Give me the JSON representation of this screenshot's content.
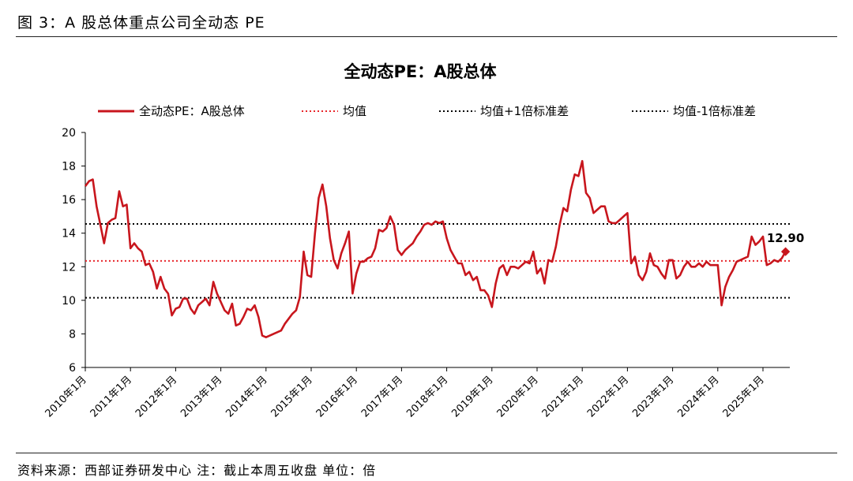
{
  "figure": {
    "caption": "图 3：A 股总体重点公司全动态 PE",
    "source": "资料来源：西部证券研发中心 注：截止本周五收盘 单位：倍"
  },
  "chart_data": {
    "type": "line",
    "title": "全动态PE：A股总体",
    "ylim": [
      6,
      20
    ],
    "yticks": [
      6,
      8,
      10,
      12,
      14,
      16,
      18,
      20
    ],
    "xticks": [
      "2010年1月",
      "2011年1月",
      "2012年1月",
      "2013年1月",
      "2014年1月",
      "2015年1月",
      "2016年1月",
      "2017年1月",
      "2018年1月",
      "2019年1月",
      "2020年1月",
      "2021年1月",
      "2022年1月",
      "2023年1月",
      "2024年1月",
      "2025年1月"
    ],
    "grid": false,
    "legend_position": "top",
    "series": [
      {
        "name": "全动态PE：A股总体",
        "color": "#c8161d",
        "style": "solid",
        "x_start": "2010-01",
        "step": "month",
        "values": [
          16.8,
          17.1,
          17.2,
          15.6,
          14.5,
          13.4,
          14.6,
          14.8,
          14.9,
          16.5,
          15.6,
          15.7,
          13.1,
          13.4,
          13.1,
          12.9,
          12.1,
          12.2,
          11.7,
          10.7,
          11.4,
          10.7,
          10.4,
          9.1,
          9.5,
          9.6,
          10.1,
          10.1,
          9.5,
          9.2,
          9.7,
          9.9,
          10.1,
          9.7,
          11.1,
          10.4,
          9.9,
          9.4,
          9.2,
          9.8,
          8.5,
          8.6,
          9.0,
          9.5,
          9.4,
          9.7,
          9.0,
          7.9,
          7.8,
          7.9,
          8.0,
          8.1,
          8.2,
          8.6,
          8.9,
          9.2,
          9.4,
          10.2,
          12.9,
          11.5,
          11.4,
          14.0,
          16.1,
          16.9,
          15.6,
          13.7,
          12.4,
          11.9,
          12.8,
          13.4,
          14.1,
          10.4,
          11.6,
          12.3,
          12.3,
          12.5,
          12.6,
          13.1,
          14.2,
          14.1,
          14.3,
          15.0,
          14.5,
          13.0,
          12.7,
          13.0,
          13.2,
          13.4,
          13.8,
          14.1,
          14.5,
          14.6,
          14.5,
          14.7,
          14.6,
          14.7,
          13.7,
          13.0,
          12.6,
          12.2,
          12.2,
          11.5,
          11.7,
          11.2,
          11.4,
          10.6,
          10.6,
          10.3,
          9.6,
          11.0,
          11.9,
          12.1,
          11.5,
          12.0,
          12.0,
          11.9,
          12.1,
          12.3,
          12.2,
          12.9,
          11.6,
          11.9,
          11.0,
          12.4,
          12.3,
          13.2,
          14.5,
          15.5,
          15.3,
          16.6,
          17.5,
          17.4,
          18.3,
          16.4,
          16.1,
          15.2,
          15.4,
          15.6,
          15.6,
          14.7,
          14.6,
          14.6,
          14.8,
          15.0,
          15.2,
          12.2,
          12.6,
          11.5,
          11.2,
          11.7,
          12.8,
          12.1,
          12.0,
          11.6,
          11.3,
          12.4,
          12.4,
          11.3,
          11.5,
          12.0,
          12.3,
          12.0,
          12.0,
          12.2,
          12.0,
          12.3,
          12.1,
          12.1,
          12.1,
          9.7,
          10.8,
          11.4,
          11.8,
          12.3,
          12.4,
          12.5,
          12.6,
          13.8,
          13.3,
          13.5,
          13.8,
          12.1,
          12.2,
          12.4,
          12.3,
          12.5,
          12.9
        ]
      },
      {
        "name": "均值",
        "color": "#e8262b",
        "style": "dotted",
        "value": 12.35
      },
      {
        "name": "均值+1倍标准差",
        "color": "#000000",
        "style": "dotted",
        "value": 14.55
      },
      {
        "name": "均值-1倍标准差",
        "color": "#000000",
        "style": "dotted",
        "value": 10.15
      }
    ],
    "annotation": {
      "text": "12.90",
      "value": 12.9
    }
  }
}
